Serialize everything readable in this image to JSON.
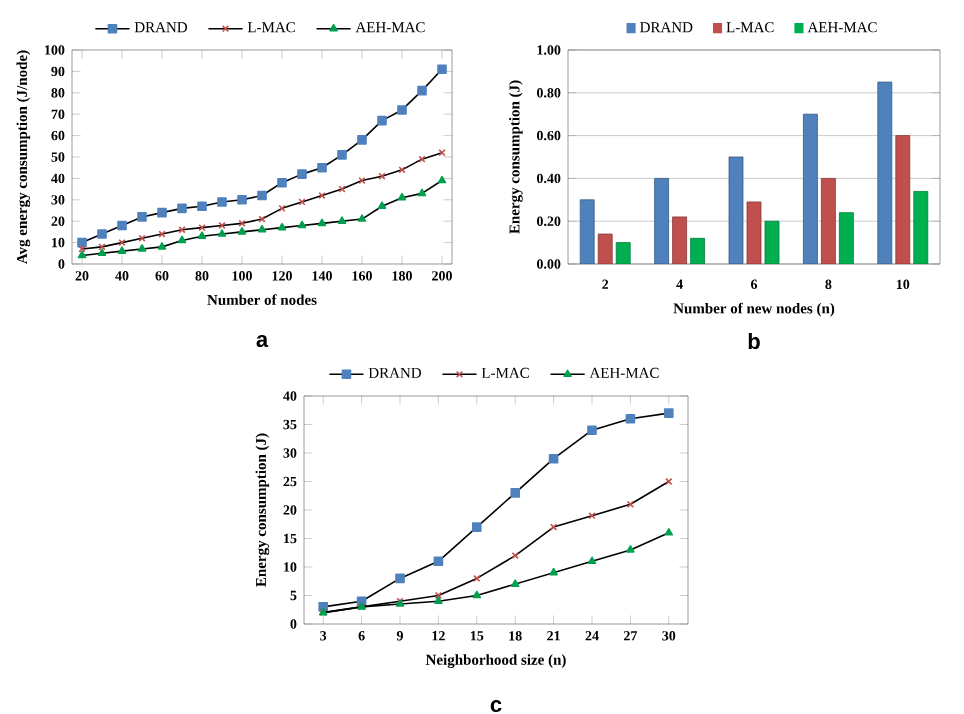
{
  "chart_data": [
    {
      "type": "line",
      "xlabel": "Number of nodes",
      "ylabel": "Avg energy consumption (J/node)",
      "annotations": [
        "a"
      ],
      "x": [
        20,
        30,
        40,
        50,
        60,
        70,
        80,
        90,
        100,
        110,
        120,
        130,
        140,
        150,
        160,
        170,
        180,
        190,
        200
      ],
      "xlim": [
        15,
        205
      ],
      "xticks": [
        20,
        40,
        60,
        80,
        100,
        120,
        140,
        160,
        180,
        200
      ],
      "ylim": [
        0,
        100
      ],
      "yticks": [
        0,
        10,
        20,
        30,
        40,
        50,
        60,
        70,
        80,
        90,
        100
      ],
      "legend": "top",
      "grid": false,
      "series": [
        {
          "name": "DRAND",
          "color": "#4f81bd",
          "marker": "square",
          "values": [
            10,
            14,
            18,
            22,
            24,
            26,
            27,
            29,
            30,
            32,
            38,
            42,
            45,
            51,
            58,
            67,
            72,
            81,
            91
          ]
        },
        {
          "name": "L-MAC",
          "color": "#c0504d",
          "marker": "cross",
          "values": [
            7,
            8,
            10,
            12,
            14,
            16,
            17,
            18,
            19,
            21,
            26,
            29,
            32,
            35,
            39,
            41,
            44,
            49,
            52
          ]
        },
        {
          "name": "AEH-MAC",
          "color": "#00a050",
          "marker": "triangle",
          "values": [
            4,
            5,
            6,
            7,
            8,
            11,
            13,
            14,
            15,
            16,
            17,
            18,
            19,
            20,
            21,
            27,
            31,
            33,
            39
          ]
        }
      ]
    },
    {
      "type": "bar",
      "xlabel": "Number of new nodes (n)",
      "ylabel": "Energy consumption (J)",
      "annotations": [
        "b"
      ],
      "categories": [
        "2",
        "4",
        "6",
        "8",
        "10"
      ],
      "ylim": [
        0,
        1
      ],
      "yticks": [
        {
          "value": 0,
          "label": "0.00"
        },
        {
          "value": 0.2,
          "label": "0.20"
        },
        {
          "value": 0.4,
          "label": "0.40"
        },
        {
          "value": 0.6,
          "label": "0.60"
        },
        {
          "value": 0.8,
          "label": "0.80"
        },
        {
          "value": 1,
          "label": "1.00"
        }
      ],
      "legend": "top",
      "grid": "y",
      "series": [
        {
          "name": "DRAND",
          "color": "#4f81bd",
          "values": [
            0.3,
            0.4,
            0.5,
            0.7,
            0.85
          ]
        },
        {
          "name": "L-MAC",
          "color": "#c0504d",
          "values": [
            0.14,
            0.22,
            0.29,
            0.4,
            0.6
          ]
        },
        {
          "name": "AEH-MAC",
          "color": "#00b050",
          "values": [
            0.1,
            0.12,
            0.2,
            0.24,
            0.34
          ]
        }
      ]
    },
    {
      "type": "line",
      "xlabel": "Neighborhood size (n)",
      "ylabel": "Energy consumption (J)",
      "annotations": [
        "c"
      ],
      "categories": [
        "3",
        "6",
        "9",
        "12",
        "15",
        "18",
        "21",
        "24",
        "27",
        "30"
      ],
      "ylim": [
        0,
        40
      ],
      "yticks": [
        0,
        5,
        10,
        15,
        20,
        25,
        30,
        35,
        40
      ],
      "legend": "top",
      "grid": false,
      "series": [
        {
          "name": "DRAND",
          "color": "#4f81bd",
          "marker": "square",
          "values": [
            3,
            4,
            8,
            11,
            17,
            23,
            29,
            34,
            36,
            37
          ]
        },
        {
          "name": "L-MAC",
          "color": "#c0504d",
          "marker": "cross",
          "values": [
            2,
            3,
            4,
            5,
            8,
            12,
            17,
            19,
            21,
            25
          ]
        },
        {
          "name": "AEH-MAC",
          "color": "#00a050",
          "marker": "triangle",
          "values": [
            2,
            3,
            3.5,
            4,
            5,
            7,
            9,
            11,
            13,
            16
          ]
        }
      ]
    }
  ]
}
